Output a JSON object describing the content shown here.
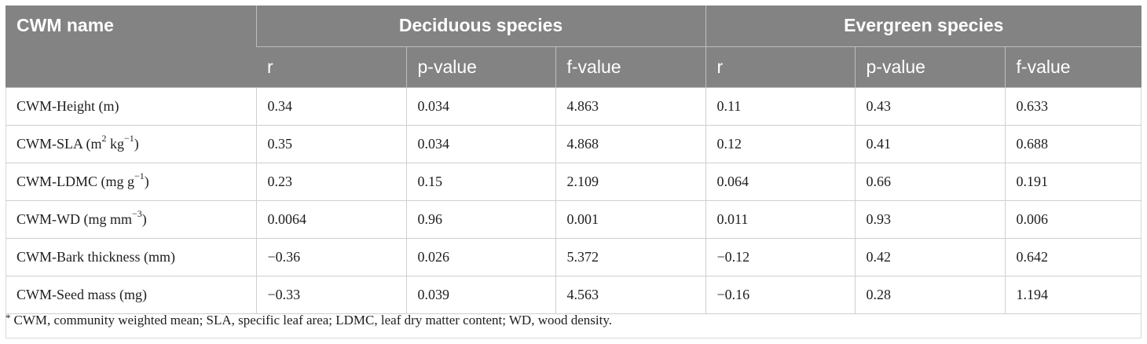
{
  "header": {
    "row_label": "CWM name",
    "groups": [
      "Deciduous species",
      "Evergreen species"
    ],
    "subcolumns": [
      "r",
      "p-value",
      "f-value",
      "r",
      "p-value",
      "f-value"
    ]
  },
  "rows": [
    {
      "name": "CWM-Height (m)",
      "unit_sup": "",
      "unit_tail": "",
      "values": [
        "0.34",
        "0.034",
        "4.863",
        "0.11",
        "0.43",
        "0.633"
      ]
    },
    {
      "name": "CWM-SLA (m",
      "unit_sup": "2",
      "unit_tail": " kg",
      "unit_sup2": "−1",
      "unit_end": ")",
      "values": [
        "0.35",
        "0.034",
        "4.868",
        "0.12",
        "0.41",
        "0.688"
      ]
    },
    {
      "name": "CWM-LDMC (mg g",
      "unit_sup": "−1",
      "unit_tail": ")",
      "values": [
        "0.23",
        "0.15",
        "2.109",
        "0.064",
        "0.66",
        "0.191"
      ]
    },
    {
      "name": "CWM-WD (mg mm",
      "unit_sup": "−3",
      "unit_tail": ")",
      "values": [
        "0.0064",
        "0.96",
        "0.001",
        "0.011",
        "0.93",
        "0.006"
      ]
    },
    {
      "name": "CWM-Bark thickness (mm)",
      "unit_sup": "",
      "unit_tail": "",
      "values": [
        "−0.36",
        "0.026",
        "5.372",
        "−0.12",
        "0.42",
        "0.642"
      ]
    },
    {
      "name": "CWM-Seed mass (mg)",
      "unit_sup": "",
      "unit_tail": "",
      "values": [
        "−0.33",
        "0.039",
        "4.563",
        "−0.16",
        "0.28",
        "1.194"
      ]
    }
  ],
  "footnote": {
    "marker": "*",
    "text": "CWM, community weighted mean; SLA, specific leaf area; LDMC, leaf dry matter content; WD, wood density."
  }
}
